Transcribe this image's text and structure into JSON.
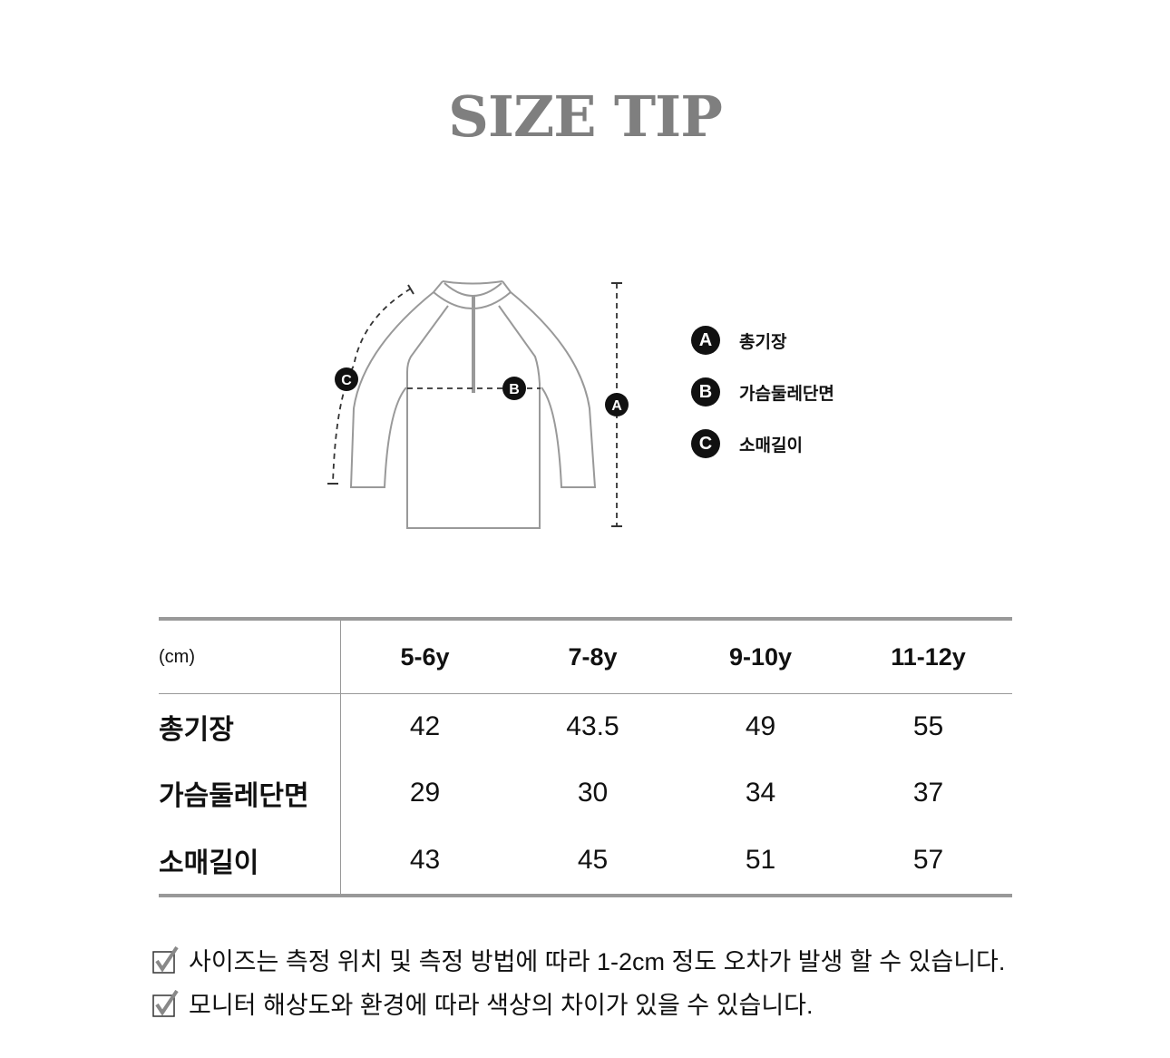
{
  "title": "SIZE TIP",
  "diagram": {
    "markers": [
      "A",
      "B",
      "C"
    ]
  },
  "legend": [
    {
      "badge": "A",
      "label": "총기장"
    },
    {
      "badge": "B",
      "label": "가슴둘레단면"
    },
    {
      "badge": "C",
      "label": "소매길이"
    }
  ],
  "table": {
    "unit": "(cm)",
    "columns": [
      "5-6y",
      "7-8y",
      "9-10y",
      "11-12y"
    ],
    "rows": [
      {
        "label": "총기장",
        "values": [
          "42",
          "43.5",
          "49",
          "55"
        ]
      },
      {
        "label": "가슴둘레단면",
        "values": [
          "29",
          "30",
          "34",
          "37"
        ]
      },
      {
        "label": "소매길이",
        "values": [
          "43",
          "45",
          "51",
          "57"
        ]
      }
    ]
  },
  "notes": [
    "사이즈는 측정 위치 및 측정 방법에 따라 1-2cm 정도 오차가 발생 할 수 있습니다.",
    "모니터 해상도와 환경에 따라 색상의 차이가 있을 수 있습니다."
  ],
  "colors": {
    "title": "#7f7f7f",
    "outline": "#999999",
    "badge": "#111111"
  }
}
